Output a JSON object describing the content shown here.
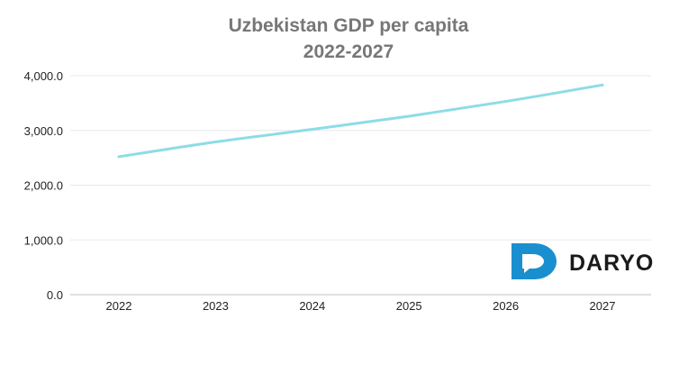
{
  "chart_data": {
    "type": "line",
    "title_lines": [
      "Uzbekistan GDP per capita",
      "2022-2027"
    ],
    "categories": [
      "2022",
      "2023",
      "2024",
      "2025",
      "2026",
      "2027"
    ],
    "series": [
      {
        "values": [
          2520,
          2790,
          3020,
          3260,
          3530,
          3830
        ]
      }
    ],
    "ylim": [
      0,
      4000
    ],
    "yticks": [
      0,
      1000,
      2000,
      3000,
      4000
    ],
    "ytick_labels": [
      "0.0",
      "1,000.0",
      "2,000.0",
      "3,000.0",
      "4,000.0"
    ],
    "grid": true,
    "line_color": "#8ddce6",
    "grid_color": "#e8e8e8",
    "axis_color": "#bfbfbf"
  },
  "logo": {
    "text": "DARYO",
    "icon": "speech-bubble-d-icon",
    "color": "#1a8fd0"
  }
}
